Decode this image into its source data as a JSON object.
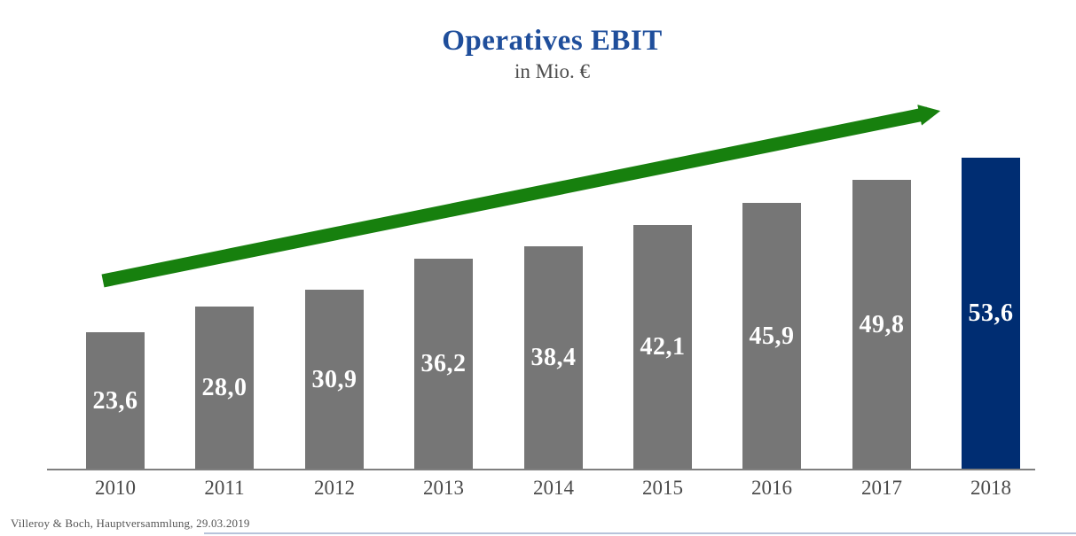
{
  "chart": {
    "title": "Operatives EBIT",
    "subtitle": "in Mio. €"
  },
  "chart_data": {
    "type": "bar",
    "title": "Operatives EBIT",
    "subtitle": "in Mio. €",
    "xlabel": "",
    "ylabel": "Operatives EBIT in Mio. €",
    "categories": [
      "2010",
      "2011",
      "2012",
      "2013",
      "2014",
      "2015",
      "2016",
      "2017",
      "2018"
    ],
    "values": [
      23.6,
      28.0,
      30.9,
      36.2,
      38.4,
      42.1,
      45.9,
      49.8,
      53.6
    ],
    "value_labels": [
      "23,6",
      "28,0",
      "30,9",
      "36,2",
      "38,4",
      "42,1",
      "45,9",
      "49,8",
      "53,6"
    ],
    "ylim": [
      0,
      56
    ],
    "grid": false,
    "legend": "none",
    "highlight_category": "2018",
    "annotations": [
      "green upward trend arrow from 2010 to 2018"
    ]
  },
  "colors": {
    "bar": "#767676",
    "highlight_bar": "#002d72",
    "title": "#1f4e9b",
    "subtitle_text": "#4d4d4d",
    "arrow": "#17800e",
    "axis": "#7f7f7f",
    "value_text": "#ffffff",
    "tick_text": "#4a4a4a",
    "bottom_divider": "#b7c3da"
  },
  "footer": {
    "text": "Villeroy & Boch, Hauptversammlung, 29.03.2019"
  }
}
